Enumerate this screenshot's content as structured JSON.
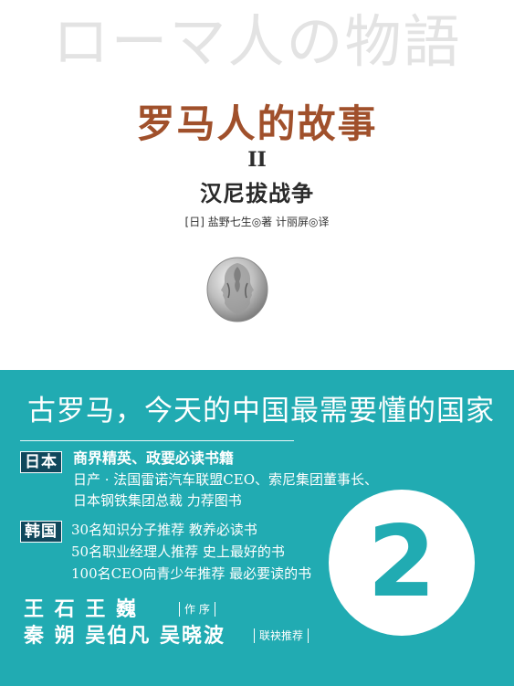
{
  "cover": {
    "jp_title": "ローマ人の物語",
    "cn_title": "罗马人的故事",
    "volume": "II",
    "subtitle": "汉尼拔战争",
    "authors": "[日] 盐野七生◎著    计丽屏◎译",
    "coin_icon": "janus-coin-icon"
  },
  "band": {
    "headline": "古罗马，今天的中国最需要懂的国家",
    "japan": {
      "tag": "日本",
      "line1": "商界精英、政要必读书籍",
      "line2": "日产 · 法国雷诺汽车联盟CEO、索尼集团董事长、",
      "line3": "日本钢铁集团总裁   力荐图书"
    },
    "korea": {
      "tag": "韩国",
      "line1": "30名知识分子推荐   教养必读书",
      "line2": "50名职业经理人推荐 史上最好的书",
      "line3": "100名CEO向青少年推荐  最必要读的书"
    },
    "preface_names": "王 石 王 巍",
    "preface_note": "作 序",
    "recommend_names": "秦 朔 吴伯凡  吴晓波",
    "recommend_note": "联袂推荐",
    "volume_number": "2"
  },
  "colors": {
    "teal": "#21abb2",
    "title_brown": "#a0502b",
    "tag_navy": "#10485c"
  }
}
